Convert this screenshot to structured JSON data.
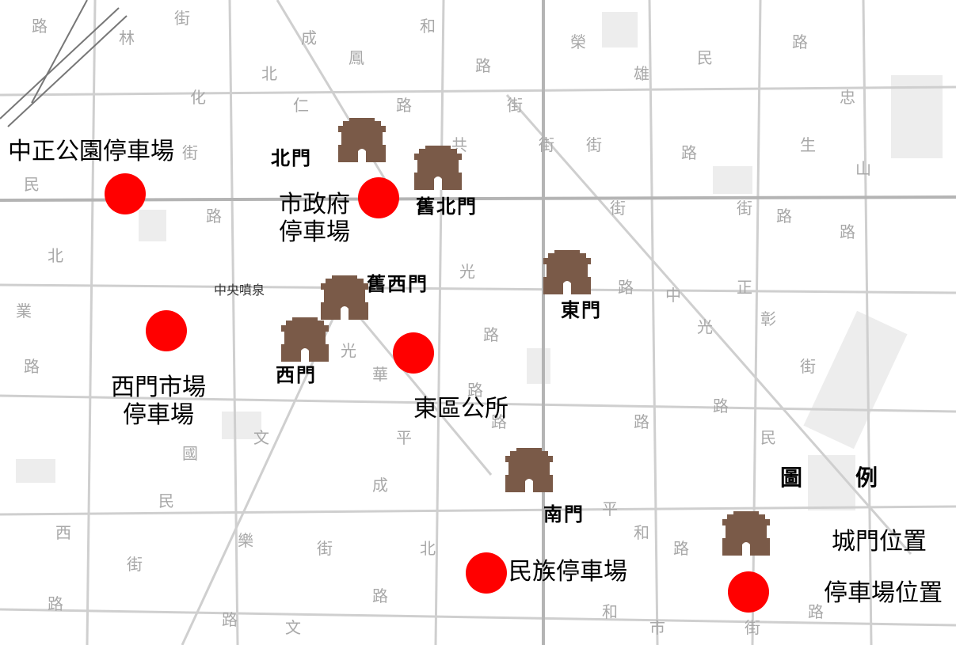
{
  "colors": {
    "gate": "#7a5a48",
    "parking": "#ff0000",
    "road": "#b8b8b8",
    "block": "#e2e2e2",
    "street_text": "#9a9a9a"
  },
  "gates": [
    {
      "name": "北門"
    },
    {
      "name": "舊北門"
    },
    {
      "name": "舊西門"
    },
    {
      "name": "西門"
    },
    {
      "name": "東門"
    },
    {
      "name": "南門"
    }
  ],
  "parking": [
    {
      "name": "中正公園停車場"
    },
    {
      "name_line1": "市政府",
      "name_line2": "停車場"
    },
    {
      "name_line1": "西門市場",
      "name_line2": "停車場"
    },
    {
      "name": "東區公所"
    },
    {
      "name": "民族停車場"
    }
  ],
  "landmark": {
    "fountain": "中央噴泉"
  },
  "legend": {
    "title_left": "圖",
    "title_right": "例",
    "gate_label": "城門位置",
    "parking_label": "停車場位置"
  }
}
